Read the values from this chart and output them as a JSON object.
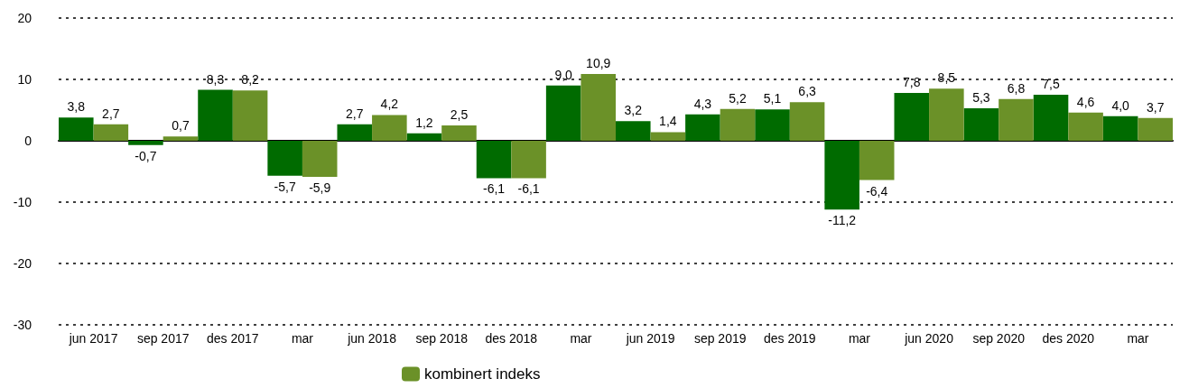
{
  "chart_data": {
    "type": "bar",
    "categories": [
      "jun 2017",
      "sep 2017",
      "des 2017",
      "mar",
      "jun 2018",
      "sep 2018",
      "des 2018",
      "mar",
      "jun 2019",
      "sep 2019",
      "des 2019",
      "mar",
      "jun 2020",
      "sep 2020",
      "des 2020",
      "mar"
    ],
    "series": [
      {
        "color": "#006b00",
        "values": [
          3.8,
          -0.7,
          8.3,
          -5.7,
          2.7,
          1.2,
          -6.1,
          9.0,
          3.2,
          4.3,
          5.1,
          -11.2,
          7.8,
          5.3,
          7.5,
          4.0
        ],
        "value_labels": [
          "3,8",
          "-0,7",
          "8,3",
          "-5,7",
          "2,7",
          "1,2",
          "-6,1",
          "9,0",
          "3,2",
          "4,3",
          "5,1",
          "-11,2",
          "7,8",
          "5,3",
          "7,5",
          "4,0"
        ]
      },
      {
        "name": "kombinert indeks",
        "color": "#6b9128",
        "values": [
          2.7,
          0.7,
          8.2,
          -5.9,
          4.2,
          2.5,
          -6.1,
          10.9,
          1.4,
          5.2,
          6.3,
          -6.4,
          8.5,
          6.8,
          4.6,
          3.7
        ],
        "value_labels": [
          "2,7",
          "0,7",
          "8,2",
          "-5,9",
          "4,2",
          "2,5",
          "-6,1",
          "10,9",
          "1,4",
          "5,2",
          "6,3",
          "-6,4",
          "8,5",
          "6,8",
          "4,6",
          "3,7"
        ]
      }
    ],
    "ylim": [
      -30,
      20
    ],
    "yticks": [
      -30,
      -20,
      -10,
      0,
      10,
      20
    ],
    "grid": "y",
    "legend": "bottom left"
  }
}
